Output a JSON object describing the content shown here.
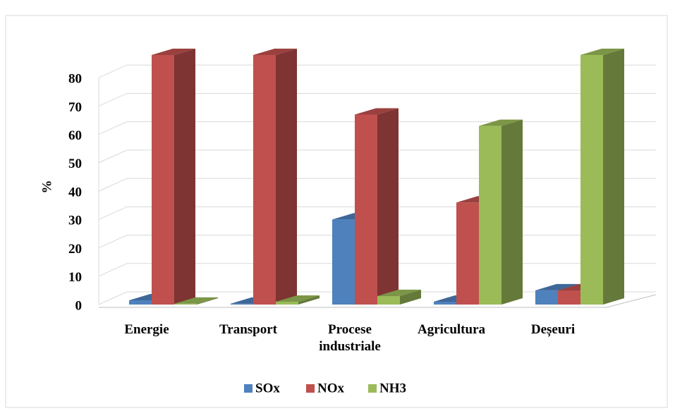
{
  "chart_data": {
    "type": "bar3d",
    "y_label": "%",
    "categories": [
      "Energie",
      "Transport",
      "Procese industriale",
      "Agricultura",
      "Deșeuri"
    ],
    "series": [
      {
        "name": "SOx",
        "color": "#4f81bd",
        "values": [
          1.5,
          0.3,
          30,
          1,
          5
        ]
      },
      {
        "name": "NOx",
        "color": "#c0504d",
        "values": [
          88,
          88,
          67,
          36,
          5
        ]
      },
      {
        "name": "NH3",
        "color": "#9bbb59",
        "values": [
          0.3,
          1,
          3,
          63,
          88
        ]
      }
    ],
    "ylim": [
      0,
      90
    ],
    "yticks": [
      0,
      10,
      20,
      30,
      40,
      50,
      60,
      70,
      80
    ],
    "grid": true
  }
}
